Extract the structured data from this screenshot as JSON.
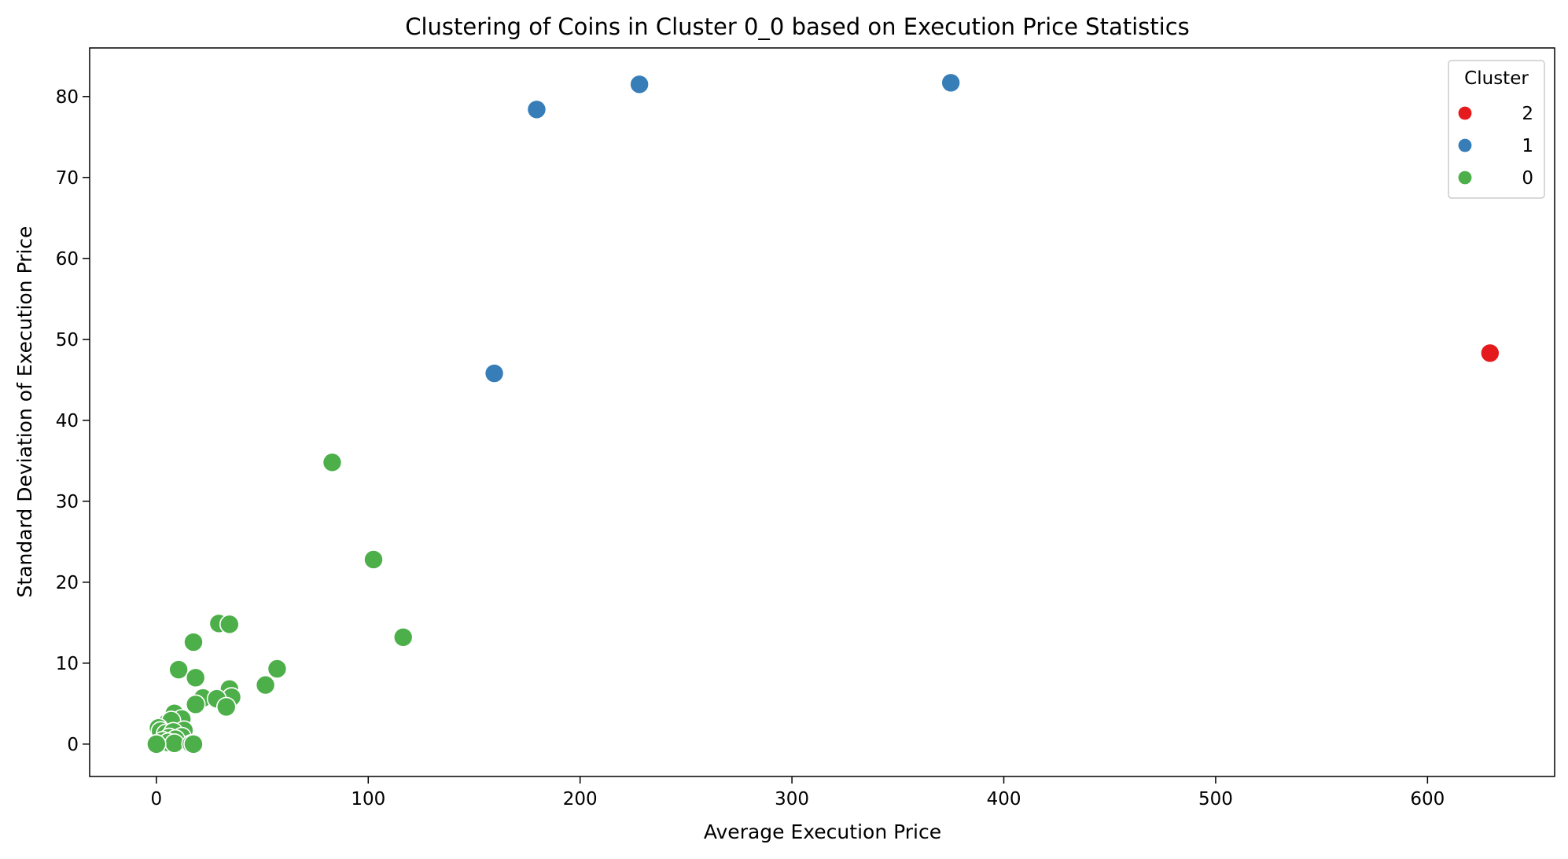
{
  "chart_data": {
    "type": "scatter",
    "title": "Clustering of Coins in Cluster 0_0 based on Execution Price Statistics",
    "xlabel": "Average Execution Price",
    "ylabel": "Standard Deviation of Execution Price",
    "xlim": [
      -31.5,
      660
    ],
    "ylim": [
      -4,
      86
    ],
    "xticks": [
      0,
      100,
      200,
      300,
      400,
      500,
      600
    ],
    "yticks": [
      0,
      10,
      20,
      30,
      40,
      50,
      60,
      70,
      80
    ],
    "grid": false,
    "legend": {
      "title": "Cluster",
      "position": "top-right",
      "entries": [
        {
          "label": "2",
          "color": "#e41a1c"
        },
        {
          "label": "1",
          "color": "#377eb8"
        },
        {
          "label": "0",
          "color": "#4daf4a"
        }
      ]
    },
    "series": [
      {
        "name": "0",
        "color": "#4daf4a",
        "points": [
          [
            83,
            34.8
          ],
          [
            102.5,
            22.8
          ],
          [
            116.5,
            13.2
          ],
          [
            29.5,
            14.9
          ],
          [
            34.5,
            14.8
          ],
          [
            17.5,
            12.6
          ],
          [
            10.5,
            9.2
          ],
          [
            57,
            9.3
          ],
          [
            18.5,
            8.2
          ],
          [
            51.5,
            7.3
          ],
          [
            34.5,
            6.8
          ],
          [
            35.5,
            5.8
          ],
          [
            22,
            5.7
          ],
          [
            28.5,
            5.6
          ],
          [
            18.5,
            4.9
          ],
          [
            33,
            4.6
          ],
          [
            8.5,
            3.8
          ],
          [
            12,
            3.1
          ],
          [
            5,
            2.6
          ],
          [
            7,
            2.9
          ],
          [
            1,
            2.0
          ],
          [
            2,
            1.6
          ],
          [
            4.5,
            1.3
          ],
          [
            13,
            1.7
          ],
          [
            8,
            1.5
          ],
          [
            12,
            0.9
          ],
          [
            6,
            0.8
          ],
          [
            9,
            0.6
          ],
          [
            3,
            0.4
          ],
          [
            5.5,
            0.2
          ],
          [
            8.5,
            0.1
          ],
          [
            16.5,
            0.0
          ],
          [
            17.5,
            0.0
          ],
          [
            0,
            0.0
          ]
        ]
      },
      {
        "name": "1",
        "color": "#377eb8",
        "points": [
          [
            375,
            81.7
          ],
          [
            228,
            81.5
          ],
          [
            179.5,
            78.4
          ],
          [
            159.5,
            45.8
          ]
        ]
      },
      {
        "name": "2",
        "color": "#e41a1c",
        "points": [
          [
            629.5,
            48.3
          ]
        ]
      }
    ]
  }
}
